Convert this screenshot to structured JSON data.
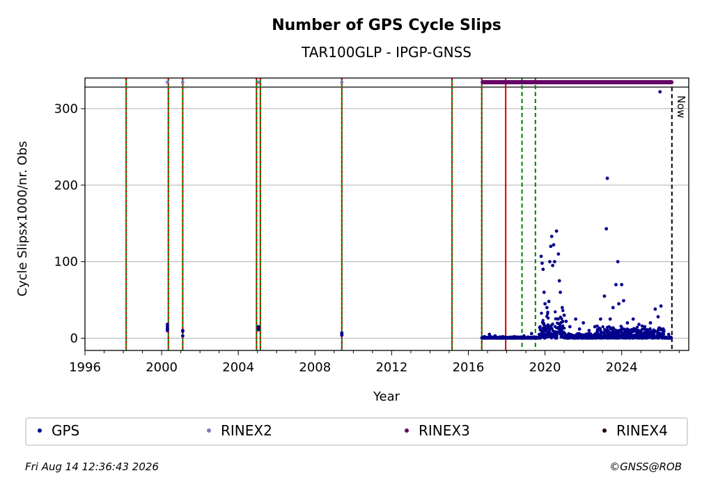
{
  "chart_data": {
    "type": "scatter",
    "title": "Number of GPS Cycle Slips",
    "subtitle": "TAR100GLP - IPGP-GNSS",
    "xlabel": "Year",
    "ylabel": "Cycle Slipsx1000/nr. Obs",
    "xlim": [
      1996,
      2027.5
    ],
    "ylim": [
      -16,
      340
    ],
    "x_ticks": [
      1996,
      2000,
      2004,
      2008,
      2012,
      2016,
      2020,
      2024
    ],
    "y_ticks": [
      0,
      100,
      200,
      300
    ],
    "grid": "horizontal",
    "now_label": "Now",
    "now_x": 2026.62,
    "vlines": {
      "red_green_dashed": [
        1998.15,
        2000.35,
        2001.1,
        2004.95,
        2005.15,
        2009.4,
        2015.15,
        2016.7
      ],
      "red_solid": [
        2017.95
      ],
      "green_dashed": [
        2018.8,
        2019.5
      ]
    },
    "series": [
      {
        "name": "GPS",
        "color": "#00008b",
        "points": [
          [
            2000.3,
            18
          ],
          [
            2000.3,
            15
          ],
          [
            2000.3,
            12
          ],
          [
            2000.3,
            10
          ],
          [
            2001.1,
            10
          ],
          [
            2001.1,
            9
          ],
          [
            2001.1,
            3
          ],
          [
            2005.05,
            15
          ],
          [
            2005.05,
            13
          ],
          [
            2005.05,
            11
          ],
          [
            2009.4,
            7
          ],
          [
            2009.4,
            5
          ],
          [
            2009.4,
            4
          ],
          [
            2016.85,
            2
          ],
          [
            2017.1,
            5
          ],
          [
            2017.4,
            3
          ],
          [
            2017.8,
            2
          ],
          [
            2018.4,
            2
          ],
          [
            2018.9,
            3
          ],
          [
            2019.3,
            6
          ],
          [
            2019.7,
            5
          ],
          [
            2019.8,
            107
          ],
          [
            2019.85,
            98
          ],
          [
            2019.9,
            90
          ],
          [
            2019.95,
            60
          ],
          [
            2020.0,
            45
          ],
          [
            2020.1,
            40
          ],
          [
            2020.2,
            48
          ],
          [
            2020.25,
            100
          ],
          [
            2020.3,
            120
          ],
          [
            2020.35,
            133
          ],
          [
            2020.4,
            95
          ],
          [
            2020.45,
            122
          ],
          [
            2020.5,
            100
          ],
          [
            2020.6,
            140
          ],
          [
            2020.7,
            110
          ],
          [
            2020.75,
            75
          ],
          [
            2020.8,
            60
          ],
          [
            2020.9,
            40
          ],
          [
            2021.0,
            30
          ],
          [
            2021.1,
            22
          ],
          [
            2021.3,
            15
          ],
          [
            2021.6,
            25
          ],
          [
            2021.8,
            12
          ],
          [
            2022.0,
            20
          ],
          [
            2022.3,
            10
          ],
          [
            2022.6,
            15
          ],
          [
            2022.9,
            25
          ],
          [
            2023.1,
            55
          ],
          [
            2023.2,
            143
          ],
          [
            2023.25,
            209
          ],
          [
            2023.4,
            25
          ],
          [
            2023.55,
            40
          ],
          [
            2023.7,
            70
          ],
          [
            2023.8,
            100
          ],
          [
            2023.85,
            45
          ],
          [
            2024.0,
            70
          ],
          [
            2024.1,
            49
          ],
          [
            2024.3,
            20
          ],
          [
            2024.6,
            25
          ],
          [
            2024.9,
            18
          ],
          [
            2025.2,
            15
          ],
          [
            2025.5,
            20
          ],
          [
            2025.75,
            38
          ],
          [
            2025.9,
            28
          ],
          [
            2026.05,
            42
          ],
          [
            2026.0,
            322
          ],
          [
            2026.2,
            10
          ],
          [
            2026.45,
            5
          ]
        ]
      },
      {
        "name": "RINEX2",
        "color": "#7b7bbd",
        "points": [
          [
            2000.3,
            345
          ],
          [
            2001.1,
            345
          ],
          [
            2005.05,
            345
          ],
          [
            2009.4,
            345
          ]
        ]
      },
      {
        "name": "RINEX3",
        "color": "#660066",
        "points": [
          [
            2016.75,
            345
          ],
          [
            2026.6,
            345
          ]
        ]
      },
      {
        "name": "RINEX4",
        "color": "#1a0010",
        "points": []
      }
    ],
    "legend": [
      "GPS",
      "RINEX2",
      "RINEX3",
      "RINEX4"
    ],
    "legend_placement": "bottom"
  },
  "footer": {
    "timestamp": "Fri Aug 14 12:36:43 2026",
    "copyright": "©GNSS@ROB"
  }
}
